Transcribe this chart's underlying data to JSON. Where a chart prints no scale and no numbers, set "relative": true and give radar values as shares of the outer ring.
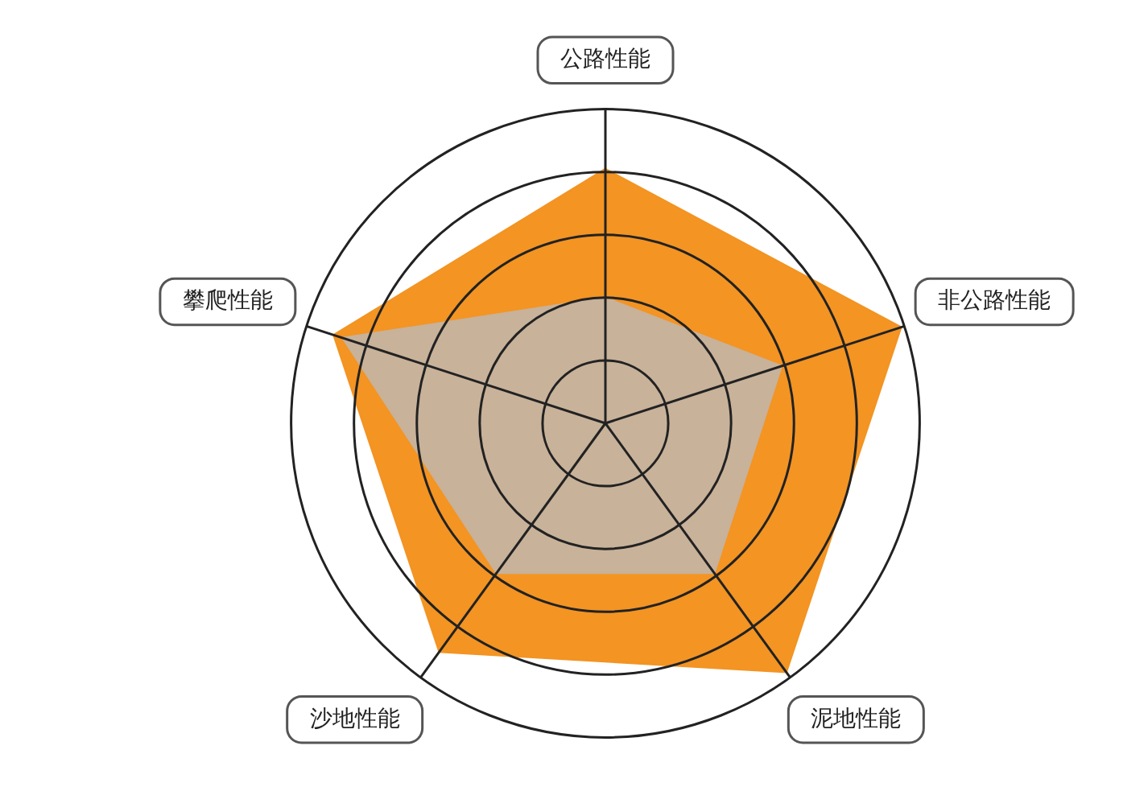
{
  "chart_data": {
    "type": "radar",
    "relative": true,
    "categories": [
      "公路性能",
      "非公路性能",
      "泥地性能",
      "沙地性能",
      "攀爬性能"
    ],
    "series": [
      {
        "color": "#f39423",
        "values": [
          0.81,
          0.99,
          0.98,
          0.9,
          0.91
        ]
      },
      {
        "color": "#c8b29a",
        "values": [
          0.4,
          0.59,
          0.59,
          0.59,
          0.88
        ]
      }
    ],
    "legend": false,
    "grid": true
  }
}
